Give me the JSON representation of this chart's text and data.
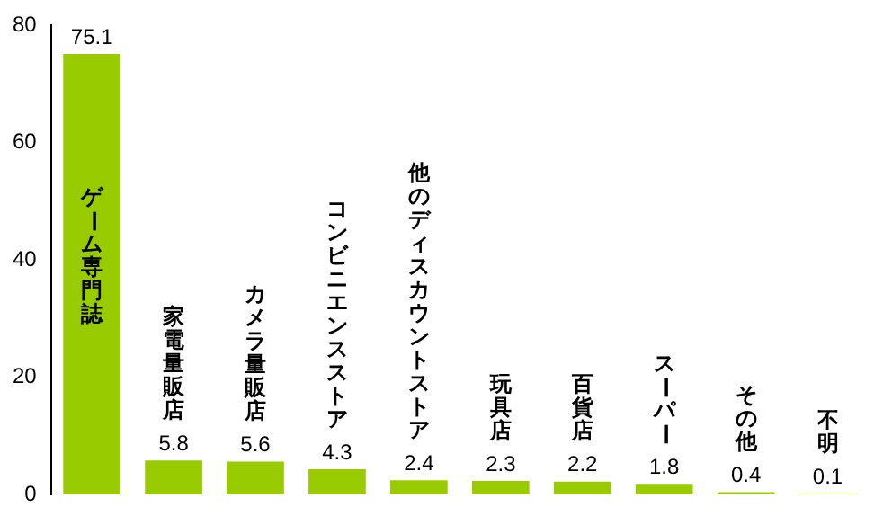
{
  "chart_data": {
    "type": "bar",
    "categories": [
      "ゲーム専門誌",
      "家電量販店",
      "カメラ量販店",
      "コンビニエンスストア",
      "他のディスカウントストア",
      "玩具店",
      "百貨店",
      "スーパー",
      "その他",
      "不明"
    ],
    "values": [
      75.1,
      5.8,
      5.6,
      4.3,
      2.4,
      2.3,
      2.2,
      1.8,
      0.4,
      0.1
    ],
    "color": "#99cc00",
    "ylim": [
      0,
      80
    ],
    "yticks": [
      0,
      20,
      40,
      60,
      80
    ],
    "grid": false,
    "data_labels": true
  }
}
